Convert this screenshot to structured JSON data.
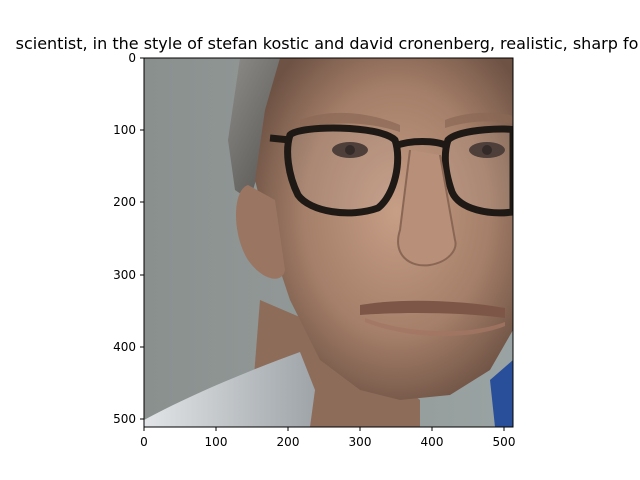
{
  "figure": {
    "title": "scientist,  in the style of stefan kostic and david cronenberg, realistic, sharp fo",
    "image_subject": "close-up portrait of a middle-aged man with gray hair and thick black-framed glasses, wearing a white lab coat",
    "x_ticks": [
      "0",
      "100",
      "200",
      "300",
      "400",
      "500"
    ],
    "y_ticks": [
      "0",
      "100",
      "200",
      "300",
      "400",
      "500"
    ],
    "colors": {
      "background": "#8b9493",
      "skin": "#b08a74",
      "glasses_frame": "#1e1915",
      "hair": "#6e6e6a",
      "coat": "#c9cdd0"
    }
  }
}
